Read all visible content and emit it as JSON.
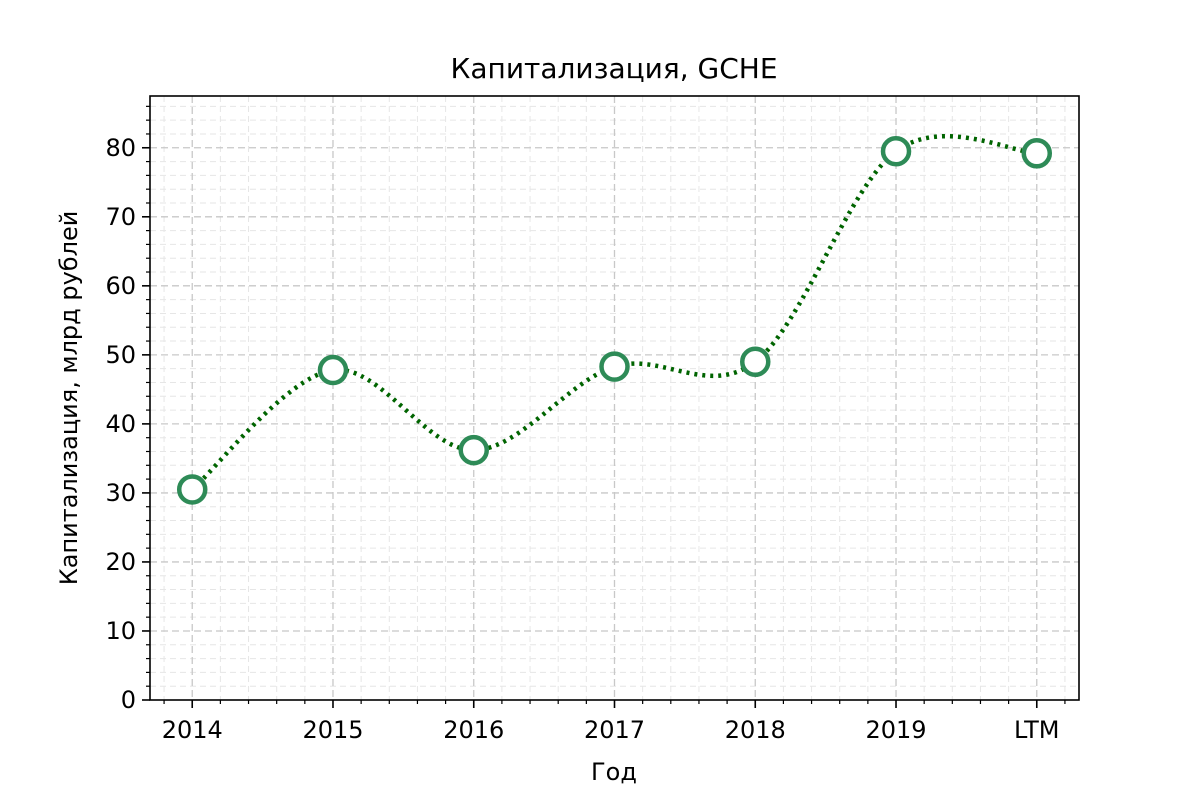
{
  "chart_data": {
    "type": "line",
    "title": "Капитализация, GCHE",
    "xlabel": "Год",
    "ylabel": "Капитализация, млрд рублей",
    "categories": [
      "2014",
      "2015",
      "2016",
      "2017",
      "2018",
      "2019",
      "LTM"
    ],
    "series": [
      {
        "values": [
          30.5,
          47.8,
          36.2,
          48.3,
          49.0,
          79.5,
          79.2
        ]
      }
    ],
    "ylim": [
      0,
      87.5
    ],
    "xlim": [
      -0.3,
      6.3
    ],
    "yticks": [
      0,
      10,
      20,
      30,
      40,
      50,
      60,
      70,
      80
    ],
    "grid": true,
    "line_style": "dotted",
    "curve": "smooth",
    "marker": "open-circle",
    "colors": {
      "line": "#006400",
      "marker_edge": "#2e8b57",
      "marker_face": "#ffffff",
      "grid_major": "#c8c8c8",
      "grid_minor": "#e6e6e6"
    }
  }
}
